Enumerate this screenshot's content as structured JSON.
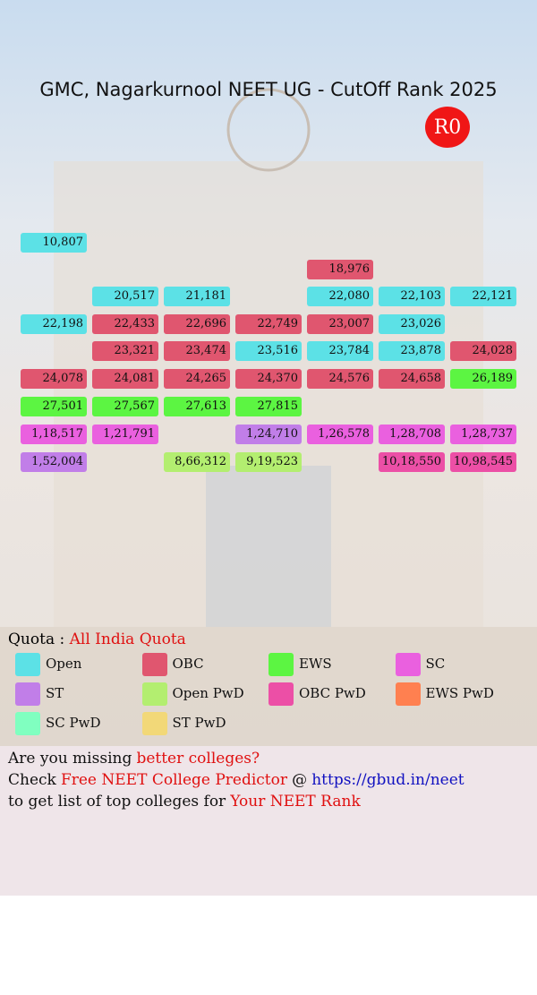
{
  "header": {
    "title": "GMC, Nagarkurnool NEET UG - CutOff Rank 2025",
    "round": "R0"
  },
  "grid": {
    "rows": [
      [
        {
          "rank": "10,807",
          "quota": "Open"
        },
        null,
        null,
        null,
        null,
        null,
        null
      ],
      [
        null,
        null,
        null,
        null,
        {
          "rank": "18,976",
          "quota": "OBC"
        },
        null,
        null
      ],
      [
        null,
        {
          "rank": "20,517",
          "quota": "Open"
        },
        {
          "rank": "21,181",
          "quota": "Open"
        },
        null,
        {
          "rank": "22,080",
          "quota": "Open"
        },
        {
          "rank": "22,103",
          "quota": "Open"
        },
        {
          "rank": "22,121",
          "quota": "Open"
        }
      ],
      [
        {
          "rank": "22,198",
          "quota": "Open"
        },
        {
          "rank": "22,433",
          "quota": "OBC"
        },
        {
          "rank": "22,696",
          "quota": "OBC"
        },
        {
          "rank": "22,749",
          "quota": "OBC"
        },
        {
          "rank": "23,007",
          "quota": "OBC"
        },
        {
          "rank": "23,026",
          "quota": "Open"
        },
        null
      ],
      [
        null,
        {
          "rank": "23,321",
          "quota": "OBC"
        },
        {
          "rank": "23,474",
          "quota": "OBC"
        },
        {
          "rank": "23,516",
          "quota": "Open"
        },
        {
          "rank": "23,784",
          "quota": "Open"
        },
        {
          "rank": "23,878",
          "quota": "Open"
        },
        {
          "rank": "24,028",
          "quota": "OBC"
        }
      ],
      [
        {
          "rank": "24,078",
          "quota": "OBC"
        },
        {
          "rank": "24,081",
          "quota": "OBC"
        },
        {
          "rank": "24,265",
          "quota": "OBC"
        },
        {
          "rank": "24,370",
          "quota": "OBC"
        },
        {
          "rank": "24,576",
          "quota": "OBC"
        },
        {
          "rank": "24,658",
          "quota": "OBC"
        },
        {
          "rank": "26,189",
          "quota": "EWS"
        }
      ],
      [
        {
          "rank": "27,501",
          "quota": "EWS"
        },
        {
          "rank": "27,567",
          "quota": "EWS"
        },
        {
          "rank": "27,613",
          "quota": "EWS"
        },
        {
          "rank": "27,815",
          "quota": "EWS"
        },
        null,
        null,
        null
      ],
      [
        {
          "rank": "1,18,517",
          "quota": "SC"
        },
        {
          "rank": "1,21,791",
          "quota": "SC"
        },
        null,
        {
          "rank": "1,24,710",
          "quota": "ST"
        },
        {
          "rank": "1,26,578",
          "quota": "SC"
        },
        {
          "rank": "1,28,708",
          "quota": "SC"
        },
        {
          "rank": "1,28,737",
          "quota": "SC"
        }
      ],
      [
        {
          "rank": "1,52,004",
          "quota": "ST"
        },
        null,
        {
          "rank": "8,66,312",
          "quota": "Open PwD"
        },
        {
          "rank": "9,19,523",
          "quota": "Open PwD"
        },
        null,
        {
          "rank": "10,18,550",
          "quota": "OBC PwD"
        },
        {
          "rank": "10,98,545",
          "quota": "OBC PwD"
        }
      ]
    ]
  },
  "quota": {
    "label": "Quota :",
    "value": "All India Quota"
  },
  "legend": [
    {
      "name": "Open",
      "color": "#5ce1e6"
    },
    {
      "name": "OBC",
      "color": "#e0566f"
    },
    {
      "name": "EWS",
      "color": "#5cf542"
    },
    {
      "name": "SC",
      "color": "#ea60df"
    },
    {
      "name": "ST",
      "color": "#c17ee8"
    },
    {
      "name": "Open PwD",
      "color": "#b3ee70"
    },
    {
      "name": "OBC PwD",
      "color": "#ec4fa6"
    },
    {
      "name": "EWS PwD",
      "color": "#ff8050"
    },
    {
      "name": "SC PwD",
      "color": "#80ffc0"
    },
    {
      "name": "ST PwD",
      "color": "#f2d878"
    }
  ],
  "footer": {
    "lines": [
      [
        {
          "text": "Are you missing",
          "style": "plain"
        },
        {
          "text": "better colleges?",
          "style": "accent"
        }
      ],
      [
        {
          "text": "Check",
          "style": "plain"
        },
        {
          "text": "Free NEET College Predictor",
          "style": "accent"
        },
        {
          "text": "@",
          "style": "plain"
        },
        {
          "text": "https://gbud.in/neet",
          "style": "link"
        }
      ],
      [
        {
          "text": "to get list of top colleges for",
          "style": "plain"
        },
        {
          "text": "Your NEET Rank",
          "style": "accent"
        }
      ]
    ]
  }
}
